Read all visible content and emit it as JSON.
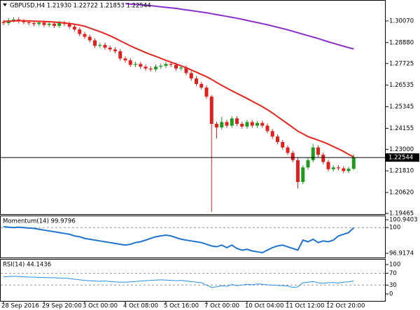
{
  "chart_data": [
    {
      "type": "candlestick",
      "title": "GBPUSD,H4  1.21930 1.22722 1.21853 1.22544",
      "categories": [
        "28 Sep 2016",
        null,
        null,
        null,
        null,
        null,
        null,
        null,
        "29 Sep 20:00",
        null,
        null,
        null,
        null,
        null,
        null,
        null,
        "3 Oct 00:00",
        null,
        null,
        null,
        null,
        null,
        null,
        null,
        "4 Oct 08:00",
        null,
        null,
        null,
        null,
        null,
        null,
        null,
        "5 Oct 16:00",
        null,
        null,
        null,
        null,
        null,
        null,
        null,
        "7 Oct 00:00",
        null,
        null,
        null,
        null,
        null,
        null,
        null,
        "10 Oct 04:00",
        null,
        null,
        null,
        null,
        null,
        null,
        null,
        "11 Oct 12:00",
        null,
        null,
        null,
        null,
        null,
        null,
        null,
        "12 Oct 20:00",
        null,
        null,
        null,
        null,
        null
      ],
      "open": [
        1.3,
        1.2995,
        1.301,
        1.3015,
        1.3005,
        1.3,
        1.2995,
        1.299,
        1.2998,
        1.2985,
        1.2992,
        1.298,
        1.2995,
        1.299,
        1.2975,
        1.296,
        1.2935,
        1.292,
        1.29,
        1.287,
        1.2875,
        1.286,
        1.285,
        1.284,
        1.28,
        1.279,
        1.2765,
        1.277,
        1.2755,
        1.2745,
        1.274,
        1.2755,
        1.276,
        1.277,
        1.2765,
        1.2745,
        1.275,
        1.272,
        1.269,
        1.266,
        1.264,
        1.259,
        1.244,
        1.242,
        1.245,
        1.243,
        1.247,
        1.244,
        1.2425,
        1.245,
        1.243,
        1.2445,
        1.243,
        1.24,
        1.237,
        1.234,
        1.231,
        1.228,
        1.224,
        1.212,
        1.22,
        1.224,
        1.231,
        1.227,
        1.223,
        1.219,
        1.22,
        1.2195,
        1.218,
        1.2193
      ],
      "high": [
        1.3012,
        1.3022,
        1.3027,
        1.3027,
        1.3017,
        1.3012,
        1.3007,
        1.301,
        1.301,
        1.3004,
        1.3004,
        1.3007,
        1.3007,
        1.3002,
        1.2987,
        1.2972,
        1.2947,
        1.2932,
        1.2912,
        1.2887,
        1.2887,
        1.2872,
        1.2862,
        1.2852,
        1.2812,
        1.2802,
        1.2782,
        1.2782,
        1.2767,
        1.2757,
        1.2767,
        1.2772,
        1.2782,
        1.2782,
        1.2777,
        1.2762,
        1.2762,
        1.2732,
        1.2702,
        1.2672,
        1.2652,
        1.26,
        1.2452,
        1.248,
        1.2462,
        1.2482,
        1.2482,
        1.2452,
        1.2462,
        1.2462,
        1.2457,
        1.2457,
        1.2442,
        1.2412,
        1.2382,
        1.2352,
        1.2322,
        1.2292,
        1.2252,
        1.2212,
        1.2252,
        1.233,
        1.2322,
        1.2282,
        1.2242,
        1.2212,
        1.2212,
        1.2207,
        1.2205,
        1.22722
      ],
      "low": [
        1.2983,
        1.2983,
        1.2998,
        1.2993,
        1.2988,
        1.2983,
        1.2978,
        1.2978,
        1.2973,
        1.2973,
        1.2968,
        1.2968,
        1.2978,
        1.2963,
        1.2948,
        1.2923,
        1.2908,
        1.2888,
        1.2858,
        1.2858,
        1.2848,
        1.2838,
        1.2828,
        1.2788,
        1.2778,
        1.2753,
        1.2753,
        1.2743,
        1.2733,
        1.2728,
        1.2728,
        1.2743,
        1.2748,
        1.2753,
        1.2733,
        1.2733,
        1.2708,
        1.2678,
        1.2648,
        1.2628,
        1.2578,
        1.1955,
        1.236,
        1.2408,
        1.2418,
        1.2418,
        1.2428,
        1.2413,
        1.2413,
        1.2418,
        1.2418,
        1.2418,
        1.2388,
        1.2358,
        1.2328,
        1.2298,
        1.2268,
        1.2228,
        1.2085,
        1.2108,
        1.2188,
        1.2228,
        1.2258,
        1.2218,
        1.2178,
        1.2178,
        1.2183,
        1.2168,
        1.2168,
        1.21853
      ],
      "close": [
        1.2995,
        1.301,
        1.3015,
        1.3005,
        1.3,
        1.2995,
        1.299,
        1.2998,
        1.2985,
        1.2992,
        1.298,
        1.2995,
        1.299,
        1.2975,
        1.296,
        1.2935,
        1.292,
        1.29,
        1.287,
        1.2875,
        1.286,
        1.285,
        1.284,
        1.28,
        1.279,
        1.2765,
        1.277,
        1.2755,
        1.2745,
        1.274,
        1.2755,
        1.276,
        1.277,
        1.2765,
        1.2745,
        1.275,
        1.272,
        1.269,
        1.266,
        1.264,
        1.259,
        1.244,
        1.242,
        1.245,
        1.243,
        1.247,
        1.244,
        1.2425,
        1.245,
        1.243,
        1.2445,
        1.243,
        1.24,
        1.237,
        1.234,
        1.231,
        1.228,
        1.224,
        1.212,
        1.22,
        1.224,
        1.231,
        1.227,
        1.223,
        1.219,
        1.22,
        1.2195,
        1.218,
        1.2193,
        1.22544
      ],
      "up_color": "#1f9a1f",
      "down_color": "#e0201c",
      "series": [
        {
          "color": "#e8251f",
          "values": [
            1.3005,
            1.3006,
            1.3007,
            1.3008,
            1.3008,
            1.3007,
            1.3006,
            1.3005,
            1.3004,
            1.3003,
            1.3001,
            1.2999,
            1.2996,
            1.2993,
            1.2989,
            1.2984,
            1.2978,
            1.2968,
            1.2958,
            1.2948,
            1.2937,
            1.2925,
            1.2912,
            1.2898,
            1.2884,
            1.287,
            1.2857,
            1.2845,
            1.2833,
            1.2822,
            1.2812,
            1.2801,
            1.279,
            1.278,
            1.277,
            1.276,
            1.2749,
            1.2737,
            1.2725,
            1.2712,
            1.27,
            1.2685,
            1.2668,
            1.2652,
            1.2637,
            1.2622,
            1.2608,
            1.2594,
            1.258,
            1.2565,
            1.255,
            1.2535,
            1.2518,
            1.25,
            1.248,
            1.246,
            1.244,
            1.242,
            1.24,
            1.2385,
            1.237,
            1.236,
            1.235,
            1.234,
            1.2328,
            1.2315,
            1.2302,
            1.2288,
            1.2272,
            1.2258
          ]
        },
        {
          "color": "#8b2fc9",
          "values": [
            null,
            null,
            null,
            null,
            null,
            null,
            null,
            null,
            null,
            null,
            null,
            null,
            null,
            null,
            null,
            null,
            null,
            null,
            null,
            null,
            null,
            null,
            null,
            null,
            1.3102,
            1.31,
            1.3098,
            1.3096,
            1.3094,
            1.3091,
            1.3088,
            1.3085,
            1.3082,
            1.3079,
            1.3076,
            1.3072,
            1.3068,
            1.3064,
            1.306,
            1.3056,
            1.3052,
            1.3047,
            1.3042,
            1.3037,
            1.3032,
            1.3027,
            1.3022,
            1.3016,
            1.301,
            1.3004,
            1.2998,
            1.2992,
            1.2986,
            1.2979,
            1.2972,
            1.2965,
            1.2958,
            1.295,
            1.2942,
            1.2934,
            1.2926,
            1.2918,
            1.291,
            1.2901,
            1.2892,
            1.2884,
            1.2876,
            1.2868,
            1.286,
            1.2853
          ]
        }
      ],
      "current_price": 1.22544,
      "ylim": [
        1.19465,
        1.3107
      ],
      "yticks": [
        {
          "value": 1.3007,
          "label": "1.30070"
        },
        {
          "value": 1.2888,
          "label": "1.28880"
        },
        1.27725,
        1.26535,
        1.25345,
        1.24155,
        {
          "value": 1.23,
          "label": "1.23000"
        },
        {
          "value": 1.2181,
          "label": "1.21810"
        },
        {
          "value": 1.2062,
          "label": "1.20620"
        },
        1.19465
      ]
    },
    {
      "type": "line",
      "title": "Momentum(14) 99.9796",
      "color": "#1e74d0",
      "values": [
        100.1,
        100.05,
        100.0,
        100.05,
        100.0,
        99.95,
        99.9,
        99.8,
        99.7,
        99.6,
        99.5,
        99.4,
        99.3,
        99.2,
        99.0,
        98.9,
        98.7,
        98.6,
        98.5,
        98.4,
        98.3,
        98.2,
        98.1,
        98.0,
        97.9,
        98.0,
        98.2,
        98.3,
        98.5,
        98.7,
        98.9,
        99.0,
        99.1,
        99.0,
        98.8,
        98.6,
        98.5,
        98.4,
        98.3,
        98.2,
        98.0,
        97.8,
        97.7,
        97.9,
        97.6,
        97.9,
        97.5,
        97.3,
        97.4,
        97.2,
        97.1,
        97.0,
        97.3,
        97.6,
        97.8,
        97.9,
        97.7,
        97.5,
        97.3,
        98.5,
        98.3,
        98.6,
        98.2,
        98.4,
        98.3,
        98.5,
        99.0,
        99.2,
        99.4,
        99.9796
      ],
      "ylim": [
        96.414,
        101.276
      ],
      "yticks": [
        100.9403,
        100,
        96.9174
      ],
      "levels": [
        100
      ]
    },
    {
      "type": "line",
      "title": "RSI(14) 44.1436",
      "color": "#2a8ee8",
      "values": [
        58,
        59,
        60,
        59,
        58,
        57,
        57,
        56,
        56,
        55,
        55,
        54,
        54,
        52,
        50,
        48,
        46,
        45,
        44,
        43,
        44,
        42,
        41,
        40,
        40,
        41,
        42,
        44,
        45,
        46,
        47,
        48,
        47,
        46,
        45,
        46,
        44,
        42,
        40,
        38,
        30,
        22,
        24,
        28,
        26,
        32,
        28,
        30,
        33,
        31,
        34,
        33,
        31,
        30,
        29,
        28,
        27,
        22,
        24,
        38,
        40,
        42,
        38,
        36,
        38,
        39,
        37,
        40,
        41,
        44.1436
      ],
      "ylim": [
        0,
        100
      ],
      "yticks": [
        100,
        70,
        30,
        0
      ],
      "levels": [
        70,
        30
      ]
    }
  ]
}
